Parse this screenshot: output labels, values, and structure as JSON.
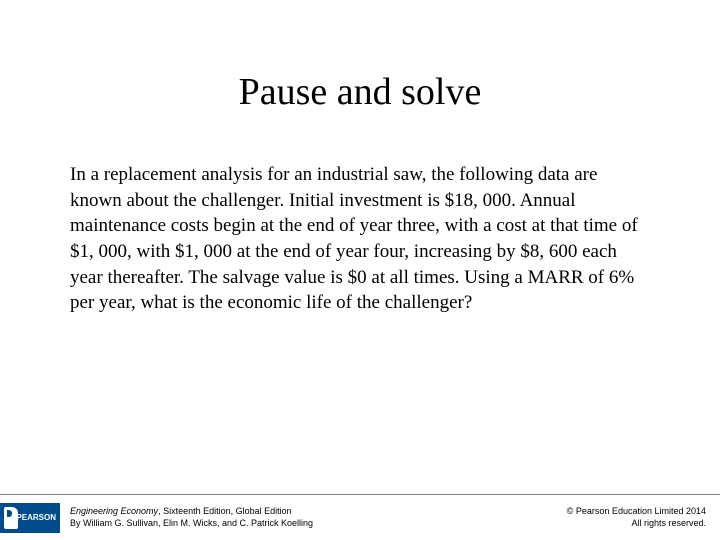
{
  "title": "Pause and solve",
  "body": "In a replacement analysis for an industrial saw, the following data are known about the challenger.  Initial investment is $18, 000.  Annual maintenance costs begin at the end of year three, with a cost at that time of $1, 000, with $1, 000 at the end of year four, increasing by $8, 600 each year thereafter.  The salvage value is $0 at all times.  Using a MARR of 6% per year, what is the economic life of the challenger?",
  "footer": {
    "logo_text": "PEARSON",
    "book_title": "Engineering Economy",
    "edition": ", Sixteenth Edition, Global Edition",
    "authors": "By William G. Sullivan, Elin M. Wicks, and C. Patrick Koelling",
    "copyright_line1": "© Pearson Education Limited 2014",
    "copyright_line2": "All rights reserved."
  },
  "colors": {
    "background": "#ffffff",
    "text": "#000000",
    "footer_border": "#808080",
    "logo_bg": "#004b8d",
    "logo_text": "#ffffff"
  },
  "typography": {
    "title_fontsize": 38,
    "body_fontsize": 19,
    "footer_fontsize": 9,
    "title_font": "Times New Roman",
    "body_font": "Times New Roman",
    "footer_font": "Arial"
  }
}
